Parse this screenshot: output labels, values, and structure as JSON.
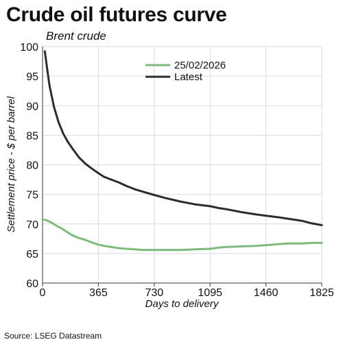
{
  "chart_data": {
    "type": "line",
    "title": "Crude oil futures curve",
    "subtitle": "Brent crude",
    "xlabel": "Days to delivery",
    "ylabel": "Settlement price - $ per barrel",
    "source": "Source: LSEG Datastream",
    "xlim": [
      0,
      1825
    ],
    "ylim": [
      60,
      100
    ],
    "x_ticks": [
      0,
      365,
      730,
      1095,
      1460,
      1825
    ],
    "y_ticks": [
      60,
      65,
      70,
      75,
      80,
      85,
      90,
      95,
      100
    ],
    "grid": true,
    "legend_position": "top-center",
    "series": [
      {
        "name": "25/02/2026",
        "color": "#7dbb7d",
        "x": [
          0,
          30,
          60,
          90,
          120,
          150,
          180,
          210,
          240,
          270,
          300,
          330,
          365,
          400,
          450,
          500,
          550,
          600,
          650,
          730,
          800,
          900,
          1000,
          1095,
          1150,
          1200,
          1300,
          1400,
          1460,
          1550,
          1600,
          1700,
          1760,
          1825
        ],
        "y": [
          70.8,
          70.6,
          70.2,
          69.7,
          69.3,
          68.8,
          68.3,
          67.9,
          67.6,
          67.4,
          67.1,
          66.8,
          66.5,
          66.3,
          66.1,
          65.9,
          65.8,
          65.7,
          65.6,
          65.6,
          65.6,
          65.6,
          65.7,
          65.8,
          66.0,
          66.1,
          66.2,
          66.3,
          66.4,
          66.6,
          66.7,
          66.7,
          66.8,
          66.8
        ]
      },
      {
        "name": "Latest",
        "color": "#2b2b2b",
        "x": [
          15,
          45,
          75,
          105,
          135,
          165,
          200,
          240,
          280,
          320,
          365,
          400,
          450,
          500,
          550,
          600,
          650,
          730,
          800,
          900,
          1000,
          1095,
          1150,
          1200,
          1300,
          1400,
          1460,
          1550,
          1600,
          1700,
          1760,
          1825
        ],
        "y": [
          99.2,
          93.5,
          89.8,
          87.2,
          85.3,
          83.9,
          82.6,
          81.2,
          80.2,
          79.4,
          78.6,
          78.0,
          77.5,
          77.0,
          76.4,
          75.9,
          75.5,
          74.9,
          74.4,
          73.8,
          73.3,
          73.0,
          72.7,
          72.5,
          72.0,
          71.6,
          71.4,
          71.1,
          70.9,
          70.5,
          70.1,
          69.8
        ]
      }
    ]
  }
}
